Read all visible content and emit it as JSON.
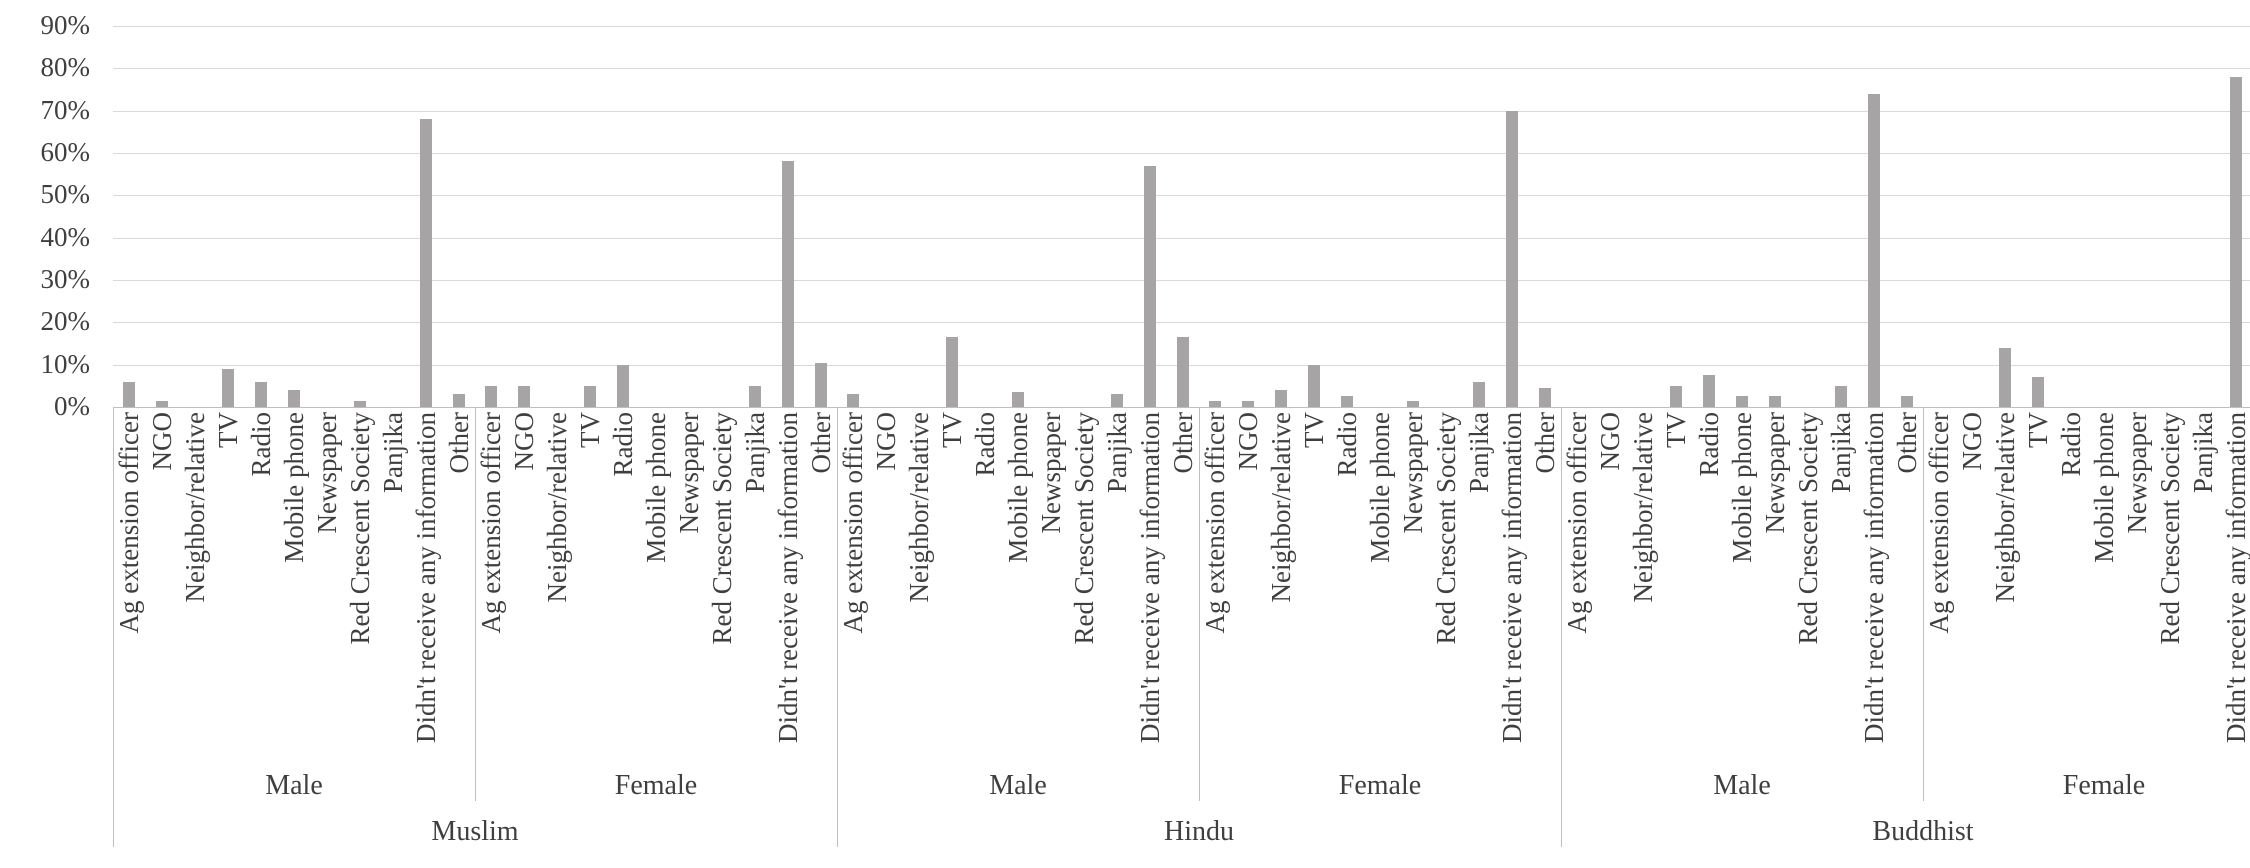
{
  "chart_data": {
    "type": "bar",
    "title": "",
    "xlabel": "",
    "ylabel": "",
    "ylim": [
      0,
      90
    ],
    "y_tick_step": 10,
    "y_ticks": [
      "0%",
      "10%",
      "20%",
      "30%",
      "40%",
      "50%",
      "60%",
      "70%",
      "80%",
      "90%"
    ],
    "grid": true,
    "legend": false,
    "categories": [
      "Ag extension officer",
      "NGO",
      "Neighbor/relative",
      "TV",
      "Radio",
      "Mobile phone",
      "Newspaper",
      "Red Crescent Society",
      "Panjika",
      "Didn't receive any information",
      "Other"
    ],
    "groups": [
      {
        "religion": "Muslim",
        "genders": [
          {
            "label": "Male",
            "values": [
              6,
              1.5,
              0,
              9,
              6,
              4,
              0,
              1.5,
              0,
              68,
              3
            ]
          },
          {
            "label": "Female",
            "values": [
              5,
              5,
              0,
              5,
              10,
              0,
              0,
              0,
              5,
              58,
              10.5
            ]
          }
        ]
      },
      {
        "religion": "Hindu",
        "genders": [
          {
            "label": "Male",
            "values": [
              3,
              0,
              0,
              16.5,
              0,
              3.5,
              0,
              0,
              3,
              57,
              16.5
            ]
          },
          {
            "label": "Female",
            "values": [
              1.5,
              1.5,
              4,
              10,
              2.5,
              0,
              1.5,
              0,
              6,
              70,
              4.5
            ]
          }
        ]
      },
      {
        "religion": "Buddhist",
        "genders": [
          {
            "label": "Male",
            "values": [
              0,
              0,
              0,
              5,
              7.5,
              2.5,
              2.5,
              0,
              5,
              74,
              2.5
            ]
          },
          {
            "label": "Female",
            "values": [
              0,
              0,
              14,
              7,
              0,
              0,
              0,
              0,
              0,
              78,
              0
            ]
          }
        ]
      }
    ],
    "colors": {
      "bar": "#A7A4A5",
      "gridline": "#D9D9D9",
      "axis": "#BFBFBF",
      "text": "#3F3F3F",
      "background": "#FFFFFF"
    }
  }
}
